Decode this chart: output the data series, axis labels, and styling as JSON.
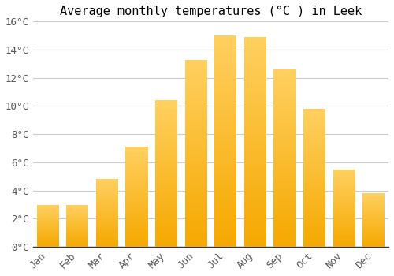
{
  "title": "Average monthly temperatures (°C ) in Leek",
  "months": [
    "Jan",
    "Feb",
    "Mar",
    "Apr",
    "May",
    "Jun",
    "Jul",
    "Aug",
    "Sep",
    "Oct",
    "Nov",
    "Dec"
  ],
  "values": [
    3.0,
    3.0,
    4.8,
    7.1,
    10.4,
    13.3,
    15.0,
    14.9,
    12.6,
    9.8,
    5.5,
    3.8
  ],
  "bar_color_bottom": "#F5A800",
  "bar_color_top": "#FFD060",
  "ylim": [
    0,
    16
  ],
  "yticks": [
    0,
    2,
    4,
    6,
    8,
    10,
    12,
    14,
    16
  ],
  "ytick_labels": [
    "0°C",
    "2°C",
    "4°C",
    "6°C",
    "8°C",
    "10°C",
    "12°C",
    "14°C",
    "16°C"
  ],
  "background_color": "#FFFFFF",
  "grid_color": "#CCCCCC",
  "title_fontsize": 11,
  "tick_fontsize": 9,
  "font_family": "monospace",
  "bar_width": 0.75,
  "n_grad": 100
}
